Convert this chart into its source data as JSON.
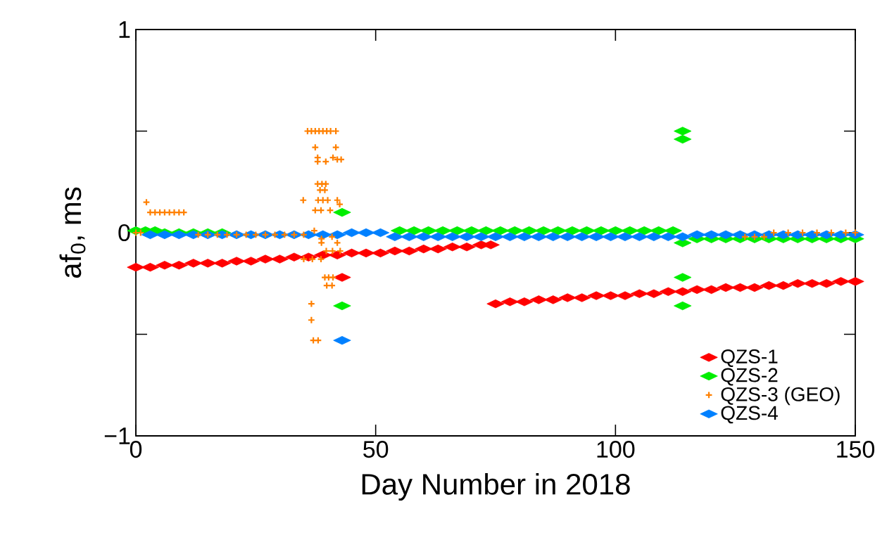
{
  "chart_data": {
    "type": "scatter",
    "xlabel": "Day Number in 2018",
    "ylabel": "af$_{0}$, ms",
    "xlim": [
      0,
      150
    ],
    "ylim": [
      -1,
      1
    ],
    "xticks": [
      0,
      50,
      100,
      150
    ],
    "yticks": [
      {
        "value": -1,
        "label": "−1"
      },
      {
        "value": -0.5,
        "label": null
      },
      0,
      {
        "value": 0.5,
        "label": null
      },
      1
    ],
    "legend": "bottom right",
    "series": [
      {
        "name": "QZS-1",
        "color": "#ff0000",
        "marker": "diamond",
        "x": [
          0,
          3,
          6,
          9,
          12,
          15,
          18,
          21,
          24,
          27,
          30,
          33,
          36,
          39,
          42,
          43,
          45,
          48,
          51,
          54,
          57,
          60,
          63,
          66,
          69,
          72,
          74,
          75,
          78,
          81,
          84,
          87,
          90,
          93,
          96,
          99,
          102,
          105,
          108,
          111,
          114,
          117,
          120,
          123,
          126,
          129,
          132,
          135,
          138,
          141,
          144,
          147,
          150
        ],
        "values": [
          -0.17,
          -0.17,
          -0.16,
          -0.16,
          -0.15,
          -0.15,
          -0.15,
          -0.14,
          -0.14,
          -0.13,
          -0.13,
          -0.12,
          -0.12,
          -0.11,
          -0.11,
          -0.22,
          -0.1,
          -0.1,
          -0.1,
          -0.09,
          -0.09,
          -0.08,
          -0.08,
          -0.07,
          -0.07,
          -0.06,
          -0.06,
          -0.35,
          -0.34,
          -0.34,
          -0.33,
          -0.33,
          -0.32,
          -0.32,
          -0.31,
          -0.31,
          -0.31,
          -0.3,
          -0.3,
          -0.29,
          -0.29,
          -0.28,
          -0.28,
          -0.27,
          -0.27,
          -0.27,
          -0.26,
          -0.26,
          -0.25,
          -0.25,
          -0.25,
          -0.24,
          -0.24
        ]
      },
      {
        "name": "QZS-2",
        "color": "#00ee00",
        "marker": "diamond",
        "x": [
          0,
          2,
          4,
          6,
          9,
          12,
          15,
          18,
          43,
          43,
          46,
          49,
          52,
          55,
          58,
          61,
          64,
          67,
          70,
          73,
          76,
          79,
          82,
          85,
          88,
          91,
          94,
          97,
          100,
          103,
          106,
          109,
          112,
          114,
          114,
          114,
          114,
          114,
          117,
          120,
          123,
          126,
          129,
          132,
          135,
          138,
          141,
          144,
          147,
          150
        ],
        "values": [
          0.01,
          0.01,
          0.01,
          0,
          0,
          0,
          0,
          0,
          0.1,
          -0.36,
          null,
          null,
          null,
          0.01,
          0.01,
          0.01,
          0.01,
          0.01,
          0.01,
          0.01,
          0.01,
          0.01,
          0.01,
          0.01,
          0.01,
          0.01,
          0.01,
          0.01,
          0.01,
          0.01,
          0.01,
          0.01,
          0.01,
          0.5,
          0.46,
          -0.05,
          -0.22,
          -0.36,
          -0.03,
          -0.03,
          -0.03,
          -0.03,
          -0.03,
          -0.03,
          -0.03,
          -0.03,
          -0.03,
          -0.03,
          -0.03,
          -0.03
        ]
      },
      {
        "name": "QZS-3 (GEO)",
        "color": "#ff8000",
        "marker": "cross",
        "x": [
          0,
          1,
          2.2,
          3,
          4,
          5,
          6,
          7,
          8,
          9,
          10,
          13,
          15,
          17,
          19,
          21,
          23,
          25,
          27,
          29,
          31,
          33,
          35,
          35.8,
          36.6,
          37.4,
          38.2,
          39,
          39.8,
          40.6,
          41.7,
          37.4,
          41.7,
          37.9,
          37.9,
          39.6,
          41.1,
          42,
          42.8,
          37.9,
          38.8,
          39.6,
          38.4,
          39.4,
          34.9,
          38,
          39,
          40,
          42,
          42.5,
          37.4,
          38.6,
          40.5,
          37.2,
          38.7,
          38.7,
          42,
          40.9,
          39.7,
          41,
          42.6,
          35,
          36.8,
          38.6,
          39.4,
          40.2,
          41.1,
          39.8,
          40.9,
          36.6,
          36.6,
          37,
          38,
          127,
          129,
          131,
          133,
          136,
          139,
          142,
          145,
          148,
          150
        ],
        "values": [
          0,
          0,
          0.15,
          0.1,
          0.1,
          0.1,
          0.1,
          0.1,
          0.1,
          0.1,
          0.1,
          -0.01,
          -0.01,
          -0.01,
          -0.01,
          -0.01,
          -0.01,
          -0.01,
          -0.01,
          -0.01,
          -0.01,
          -0.01,
          -0.01,
          0.5,
          0.5,
          0.5,
          0.5,
          0.5,
          0.5,
          0.5,
          0.5,
          0.42,
          0.42,
          0.37,
          0.35,
          0.35,
          0.37,
          0.36,
          0.36,
          0.24,
          0.24,
          0.24,
          0.21,
          0.21,
          0.16,
          0.16,
          0.16,
          0.16,
          0.16,
          0.14,
          0.11,
          0.11,
          0.11,
          0.01,
          -0.03,
          -0.05,
          -0.05,
          -0.02,
          -0.09,
          -0.09,
          -0.09,
          -0.13,
          -0.13,
          -0.13,
          -0.22,
          -0.22,
          -0.22,
          -0.26,
          -0.26,
          -0.35,
          -0.43,
          -0.53,
          -0.53,
          -0.02,
          -0.02,
          -0.02,
          0,
          0,
          0,
          0,
          0,
          0,
          0
        ]
      },
      {
        "name": "QZS-4",
        "color": "#0080ff",
        "marker": "diamond",
        "x": [
          3,
          6,
          9,
          12,
          15,
          18,
          21,
          24,
          27,
          30,
          33,
          36,
          39,
          42,
          43,
          45,
          48,
          51,
          54,
          57,
          60,
          63,
          66,
          69,
          72,
          75,
          78,
          81,
          84,
          87,
          90,
          93,
          96,
          99,
          102,
          105,
          108,
          111,
          114,
          117,
          120,
          123,
          126,
          129,
          132,
          135,
          138,
          141,
          144,
          147,
          150
        ],
        "values": [
          -0.01,
          -0.01,
          -0.01,
          -0.01,
          -0.01,
          -0.01,
          -0.01,
          -0.01,
          -0.01,
          -0.01,
          -0.01,
          -0.01,
          -0.01,
          -0.01,
          -0.53,
          0,
          0,
          0,
          -0.02,
          -0.02,
          -0.02,
          -0.02,
          -0.02,
          -0.02,
          -0.02,
          -0.02,
          -0.02,
          -0.02,
          -0.02,
          -0.02,
          -0.02,
          -0.02,
          -0.02,
          -0.02,
          -0.02,
          -0.02,
          -0.02,
          -0.02,
          -0.02,
          -0.01,
          -0.01,
          -0.01,
          -0.01,
          -0.01,
          -0.01,
          -0.01,
          -0.01,
          -0.01,
          -0.01,
          -0.01,
          -0.01
        ]
      }
    ]
  }
}
